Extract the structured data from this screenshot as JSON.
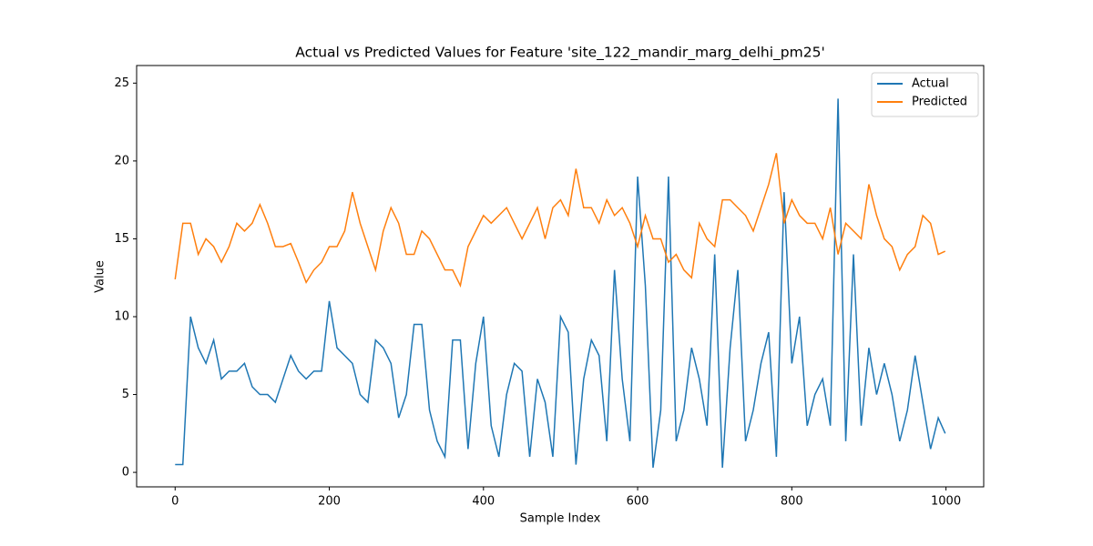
{
  "chart_data": {
    "type": "line",
    "title": "Actual vs Predicted Values for Feature 'site_122_mandir_marg_delhi_pm25'",
    "x_label": "Sample Index",
    "y_label": "Value",
    "x": [
      0,
      10,
      20,
      30,
      40,
      50,
      60,
      70,
      80,
      90,
      100,
      110,
      120,
      130,
      140,
      150,
      160,
      170,
      180,
      190,
      200,
      210,
      220,
      230,
      240,
      250,
      260,
      270,
      280,
      290,
      300,
      310,
      320,
      330,
      340,
      350,
      360,
      370,
      380,
      390,
      400,
      410,
      420,
      430,
      440,
      450,
      460,
      470,
      480,
      490,
      500,
      510,
      520,
      530,
      540,
      550,
      560,
      570,
      580,
      590,
      600,
      610,
      620,
      630,
      640,
      650,
      660,
      670,
      680,
      690,
      700,
      710,
      720,
      730,
      740,
      750,
      760,
      770,
      780,
      790,
      800,
      810,
      820,
      830,
      840,
      850,
      860,
      870,
      880,
      890,
      900,
      910,
      920,
      930,
      940,
      950,
      960,
      970,
      980,
      990,
      999
    ],
    "series": [
      {
        "name": "Actual",
        "color": "#1f77b4",
        "values": [
          0.5,
          0.5,
          10,
          8,
          7,
          8.5,
          6,
          6.5,
          6.5,
          7,
          5.5,
          5,
          5,
          4.5,
          6,
          7.5,
          6.5,
          6,
          6.5,
          6.5,
          11,
          8,
          7.5,
          7,
          5,
          4.5,
          8.5,
          8,
          7,
          3.5,
          5,
          9.5,
          9.5,
          4,
          2,
          1,
          8.5,
          8.5,
          1.5,
          7,
          10,
          3,
          1,
          5,
          7,
          6.5,
          1,
          6,
          4.5,
          1,
          10,
          9,
          0.5,
          6,
          8.5,
          7.5,
          2,
          13,
          6,
          2,
          19,
          12,
          0.3,
          4,
          19,
          2,
          4,
          8,
          6,
          3,
          14,
          0.3,
          8,
          13,
          2,
          4,
          7,
          9,
          1,
          18,
          7,
          10,
          3,
          5,
          6,
          3,
          24,
          2,
          14,
          3,
          8,
          5,
          7,
          5,
          2,
          4,
          7.5,
          4.5,
          1.5,
          3.5,
          2.5
        ]
      },
      {
        "name": "Predicted",
        "color": "#ff7f0e",
        "values": [
          12.4,
          16,
          16,
          14,
          15,
          14.5,
          13.5,
          14.5,
          16,
          15.5,
          16,
          17.2,
          16,
          14.5,
          14.5,
          14.7,
          13.5,
          12.2,
          13,
          13.5,
          14.5,
          14.5,
          15.5,
          18,
          16,
          14.5,
          13,
          15.5,
          17,
          16,
          14,
          14,
          15.5,
          15,
          14,
          13,
          13,
          12,
          14.5,
          15.5,
          16.5,
          16,
          16.5,
          17,
          16,
          15,
          16,
          17,
          15,
          17,
          17.5,
          16.5,
          19.5,
          17,
          17,
          16,
          17.5,
          16.5,
          17,
          16,
          14.5,
          16.5,
          15,
          15,
          13.5,
          14,
          13,
          12.5,
          16,
          15,
          14.5,
          17.5,
          17.5,
          17,
          16.5,
          15.5,
          17,
          18.5,
          20.5,
          16,
          17.5,
          16.5,
          16,
          16,
          15,
          17,
          14,
          16,
          15.5,
          15,
          18.5,
          16.5,
          15,
          14.5,
          13,
          14,
          14.5,
          16.5,
          16,
          14,
          14.2
        ]
      }
    ],
    "xlim": [
      -49.95,
      1048.95
    ],
    "ylim": [
      -0.93,
      26.13
    ],
    "xticks": [
      0,
      200,
      400,
      600,
      800,
      1000
    ],
    "yticks": [
      0,
      5,
      10,
      15,
      20,
      25
    ],
    "grid": false,
    "legend": "upper right"
  }
}
